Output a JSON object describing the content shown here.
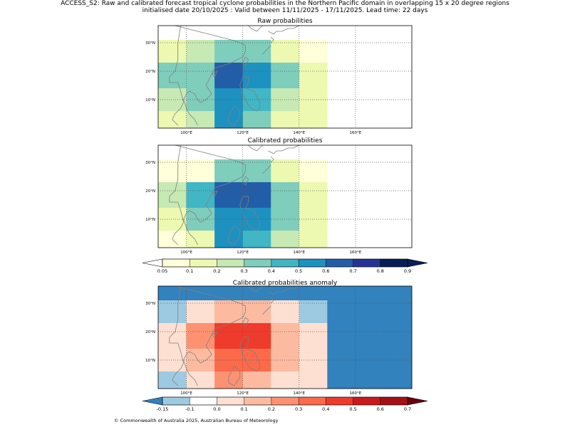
{
  "title_line1": "ACCESS_S2: Raw and calibrated forecast tropical cyclone probabilities in the Northern Pacific domain in overlapping 15 x 20 degree regions",
  "title_line2": "initialised date 20/10/2025 :  Valid between 11/11/2025 - 17/11/2025. Lead time: 22 days",
  "footer": "© Commonwealth of Australia 2025, Australian Bureau of Meteorology",
  "chart_data": {
    "type": "heatmap",
    "x_axis": {
      "lon_range": [
        90,
        180
      ],
      "ticks": [
        100,
        120,
        140,
        160
      ],
      "tick_labels": [
        "100°E",
        "120°E",
        "140°E",
        "160°E"
      ]
    },
    "y_axis": {
      "lat_range": [
        0,
        36
      ],
      "ticks": [
        10,
        20,
        30
      ],
      "tick_labels": [
        "10°N",
        "20°N",
        "30°N"
      ]
    },
    "cell_lons": [
      90,
      100,
      110,
      120,
      130,
      140,
      150,
      160,
      170,
      180
    ],
    "cell_lats": [
      36,
      31,
      23,
      14,
      6,
      0
    ],
    "panels": [
      {
        "title": "Raw probabilities",
        "colorscale": "prob",
        "values": [
          [
            0.15,
            0.25,
            0.35,
            0.35,
            0.15,
            0.05,
            null,
            null,
            null
          ],
          [
            0.35,
            0.35,
            0.65,
            0.55,
            0.35,
            0.15,
            null,
            null,
            null
          ],
          [
            0.25,
            0.35,
            0.55,
            0.45,
            0.25,
            0.15,
            null,
            null,
            null
          ],
          [
            0.15,
            0.25,
            0.55,
            0.35,
            0.15,
            0.15,
            null,
            null,
            null
          ]
        ]
      },
      {
        "title": "Calibrated probabilities",
        "colorscale": "prob",
        "values": [
          [
            0.05,
            0.05,
            0.35,
            0.35,
            0.15,
            0.05,
            null,
            null,
            null
          ],
          [
            0.25,
            0.45,
            0.65,
            0.65,
            0.35,
            0.15,
            null,
            null,
            null
          ],
          [
            0.15,
            0.35,
            0.55,
            0.55,
            0.35,
            0.15,
            null,
            null,
            null
          ],
          [
            0.05,
            0.15,
            0.55,
            0.45,
            0.25,
            0.15,
            null,
            null,
            null
          ]
        ]
      },
      {
        "title": "Calibrated probabilities anomaly",
        "colorscale": "anom",
        "top_row": -0.2,
        "values": [
          [
            -0.12,
            0.0,
            0.15,
            0.15,
            0.0,
            -0.12,
            -0.2,
            -0.2,
            -0.2
          ],
          [
            0.05,
            0.25,
            0.45,
            0.45,
            0.15,
            0.0,
            -0.2,
            -0.2,
            -0.2
          ],
          [
            0.0,
            0.15,
            0.35,
            0.35,
            0.15,
            0.0,
            -0.2,
            -0.2,
            -0.2
          ],
          [
            -0.12,
            0.05,
            0.25,
            0.15,
            0.05,
            0.0,
            -0.2,
            -0.2,
            -0.2
          ]
        ]
      }
    ],
    "colorbars": [
      {
        "name": "prob",
        "bounds": [
          0.05,
          0.1,
          0.2,
          0.3,
          0.4,
          0.5,
          0.6,
          0.7,
          0.8,
          0.9
        ],
        "tick_labels": [
          "0.05",
          "0.1",
          "0.2",
          "0.3",
          "0.4",
          "0.5",
          "0.6",
          "0.7",
          "0.8",
          "0.9"
        ],
        "colors": [
          "#ffffd9",
          "#edf8b1",
          "#c7e9b4",
          "#7fcdbb",
          "#41b6c4",
          "#1d91c0",
          "#225ea8",
          "#253494",
          "#081d58"
        ],
        "under_color": "#ffffff",
        "over_color": "#081d58"
      },
      {
        "name": "anom",
        "bounds": [
          -0.15,
          -0.1,
          0.0,
          0.1,
          0.2,
          0.3,
          0.4,
          0.5,
          0.6,
          0.7
        ],
        "tick_labels": [
          "-0.15",
          "-0.1",
          "0.0",
          "0.1",
          "0.2",
          "0.3",
          "0.4",
          "0.5",
          "0.6",
          "0.7"
        ],
        "colors": [
          "#9ecae1",
          "#ffffff",
          "#fee0d2",
          "#fcbba1",
          "#fc9272",
          "#fb6a4a",
          "#ef3b2c",
          "#cb181d",
          "#a50f15"
        ],
        "under_color": "#3182bd",
        "over_color": "#67000d"
      }
    ]
  }
}
